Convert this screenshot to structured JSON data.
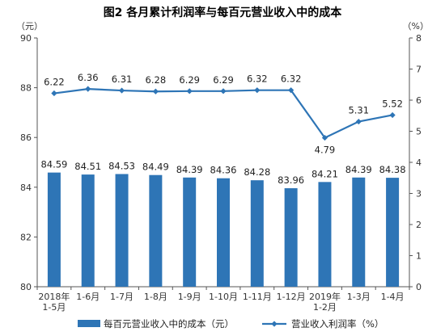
{
  "chart_data": {
    "type": "bar+line",
    "title": "图2 各月累计利润率与每百元营业收入中的成本",
    "left_unit": "（元）",
    "right_unit": "（%）",
    "categories": [
      {
        "top": "2018年",
        "bottom": "1-5月"
      },
      {
        "top": "1-6月",
        "bottom": ""
      },
      {
        "top": "1-7月",
        "bottom": ""
      },
      {
        "top": "1-8月",
        "bottom": ""
      },
      {
        "top": "1-9月",
        "bottom": ""
      },
      {
        "top": "1-10月",
        "bottom": ""
      },
      {
        "top": "1-11月",
        "bottom": ""
      },
      {
        "top": "1-12月",
        "bottom": ""
      },
      {
        "top": "2019年",
        "bottom": "1-2月"
      },
      {
        "top": "1-3月",
        "bottom": ""
      },
      {
        "top": "1-4月",
        "bottom": ""
      }
    ],
    "bar_series": {
      "name": "每百元营业收入中的成本（元）",
      "values": [
        84.59,
        84.51,
        84.53,
        84.49,
        84.39,
        84.36,
        84.28,
        83.96,
        84.21,
        84.39,
        84.38
      ],
      "labels": [
        "84.59",
        "84.51",
        "84.53",
        "84.49",
        "84.39",
        "84.36",
        "84.28",
        "83.96",
        "84.21",
        "84.39",
        "84.38"
      ],
      "color": "#2E75B6"
    },
    "line_series": {
      "name": "营业收入利润率（%）",
      "values": [
        6.22,
        6.36,
        6.31,
        6.28,
        6.29,
        6.29,
        6.32,
        6.32,
        4.79,
        5.31,
        5.52
      ],
      "labels": [
        "6.22",
        "6.36",
        "6.31",
        "6.28",
        "6.29",
        "6.29",
        "6.32",
        "6.32",
        "4.79",
        "5.31",
        "5.52"
      ],
      "color": "#2E75B6"
    },
    "left_axis": {
      "min": 80,
      "max": 90,
      "ticks": [
        "80",
        "82",
        "84",
        "86",
        "88",
        "90"
      ]
    },
    "right_axis": {
      "min": 0,
      "max": 8,
      "ticks": [
        "0",
        "1",
        "2",
        "3",
        "4",
        "5",
        "6",
        "7",
        "8"
      ]
    },
    "legend_position": "bottom",
    "grid": false
  }
}
